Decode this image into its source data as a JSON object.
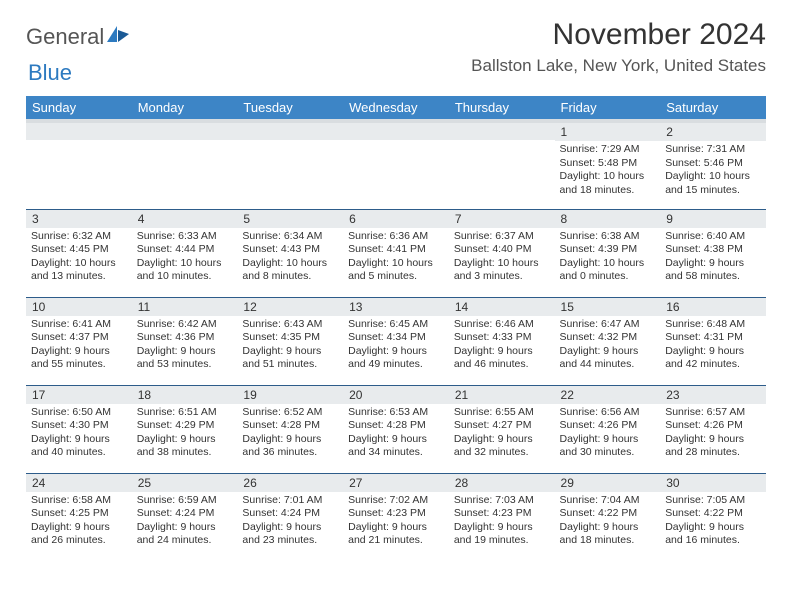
{
  "logo": {
    "text_main": "General",
    "text_sub": "Blue"
  },
  "title": "November 2024",
  "location": "Ballston Lake, New York, United States",
  "colors": {
    "header_bg": "#3d85c6",
    "header_fg": "#ffffff",
    "daynum_bg": "#e8ebed",
    "row_border": "#2d5c8a",
    "body_text": "#333333",
    "logo_blue": "#2d7ac0"
  },
  "columns": [
    "Sunday",
    "Monday",
    "Tuesday",
    "Wednesday",
    "Thursday",
    "Friday",
    "Saturday"
  ],
  "weeks": [
    [
      {
        "d": "",
        "sr": "",
        "ss": "",
        "dl1": "",
        "dl2": ""
      },
      {
        "d": "",
        "sr": "",
        "ss": "",
        "dl1": "",
        "dl2": ""
      },
      {
        "d": "",
        "sr": "",
        "ss": "",
        "dl1": "",
        "dl2": ""
      },
      {
        "d": "",
        "sr": "",
        "ss": "",
        "dl1": "",
        "dl2": ""
      },
      {
        "d": "",
        "sr": "",
        "ss": "",
        "dl1": "",
        "dl2": ""
      },
      {
        "d": "1",
        "sr": "Sunrise: 7:29 AM",
        "ss": "Sunset: 5:48 PM",
        "dl1": "Daylight: 10 hours",
        "dl2": "and 18 minutes."
      },
      {
        "d": "2",
        "sr": "Sunrise: 7:31 AM",
        "ss": "Sunset: 5:46 PM",
        "dl1": "Daylight: 10 hours",
        "dl2": "and 15 minutes."
      }
    ],
    [
      {
        "d": "3",
        "sr": "Sunrise: 6:32 AM",
        "ss": "Sunset: 4:45 PM",
        "dl1": "Daylight: 10 hours",
        "dl2": "and 13 minutes."
      },
      {
        "d": "4",
        "sr": "Sunrise: 6:33 AM",
        "ss": "Sunset: 4:44 PM",
        "dl1": "Daylight: 10 hours",
        "dl2": "and 10 minutes."
      },
      {
        "d": "5",
        "sr": "Sunrise: 6:34 AM",
        "ss": "Sunset: 4:43 PM",
        "dl1": "Daylight: 10 hours",
        "dl2": "and 8 minutes."
      },
      {
        "d": "6",
        "sr": "Sunrise: 6:36 AM",
        "ss": "Sunset: 4:41 PM",
        "dl1": "Daylight: 10 hours",
        "dl2": "and 5 minutes."
      },
      {
        "d": "7",
        "sr": "Sunrise: 6:37 AM",
        "ss": "Sunset: 4:40 PM",
        "dl1": "Daylight: 10 hours",
        "dl2": "and 3 minutes."
      },
      {
        "d": "8",
        "sr": "Sunrise: 6:38 AM",
        "ss": "Sunset: 4:39 PM",
        "dl1": "Daylight: 10 hours",
        "dl2": "and 0 minutes."
      },
      {
        "d": "9",
        "sr": "Sunrise: 6:40 AM",
        "ss": "Sunset: 4:38 PM",
        "dl1": "Daylight: 9 hours",
        "dl2": "and 58 minutes."
      }
    ],
    [
      {
        "d": "10",
        "sr": "Sunrise: 6:41 AM",
        "ss": "Sunset: 4:37 PM",
        "dl1": "Daylight: 9 hours",
        "dl2": "and 55 minutes."
      },
      {
        "d": "11",
        "sr": "Sunrise: 6:42 AM",
        "ss": "Sunset: 4:36 PM",
        "dl1": "Daylight: 9 hours",
        "dl2": "and 53 minutes."
      },
      {
        "d": "12",
        "sr": "Sunrise: 6:43 AM",
        "ss": "Sunset: 4:35 PM",
        "dl1": "Daylight: 9 hours",
        "dl2": "and 51 minutes."
      },
      {
        "d": "13",
        "sr": "Sunrise: 6:45 AM",
        "ss": "Sunset: 4:34 PM",
        "dl1": "Daylight: 9 hours",
        "dl2": "and 49 minutes."
      },
      {
        "d": "14",
        "sr": "Sunrise: 6:46 AM",
        "ss": "Sunset: 4:33 PM",
        "dl1": "Daylight: 9 hours",
        "dl2": "and 46 minutes."
      },
      {
        "d": "15",
        "sr": "Sunrise: 6:47 AM",
        "ss": "Sunset: 4:32 PM",
        "dl1": "Daylight: 9 hours",
        "dl2": "and 44 minutes."
      },
      {
        "d": "16",
        "sr": "Sunrise: 6:48 AM",
        "ss": "Sunset: 4:31 PM",
        "dl1": "Daylight: 9 hours",
        "dl2": "and 42 minutes."
      }
    ],
    [
      {
        "d": "17",
        "sr": "Sunrise: 6:50 AM",
        "ss": "Sunset: 4:30 PM",
        "dl1": "Daylight: 9 hours",
        "dl2": "and 40 minutes."
      },
      {
        "d": "18",
        "sr": "Sunrise: 6:51 AM",
        "ss": "Sunset: 4:29 PM",
        "dl1": "Daylight: 9 hours",
        "dl2": "and 38 minutes."
      },
      {
        "d": "19",
        "sr": "Sunrise: 6:52 AM",
        "ss": "Sunset: 4:28 PM",
        "dl1": "Daylight: 9 hours",
        "dl2": "and 36 minutes."
      },
      {
        "d": "20",
        "sr": "Sunrise: 6:53 AM",
        "ss": "Sunset: 4:28 PM",
        "dl1": "Daylight: 9 hours",
        "dl2": "and 34 minutes."
      },
      {
        "d": "21",
        "sr": "Sunrise: 6:55 AM",
        "ss": "Sunset: 4:27 PM",
        "dl1": "Daylight: 9 hours",
        "dl2": "and 32 minutes."
      },
      {
        "d": "22",
        "sr": "Sunrise: 6:56 AM",
        "ss": "Sunset: 4:26 PM",
        "dl1": "Daylight: 9 hours",
        "dl2": "and 30 minutes."
      },
      {
        "d": "23",
        "sr": "Sunrise: 6:57 AM",
        "ss": "Sunset: 4:26 PM",
        "dl1": "Daylight: 9 hours",
        "dl2": "and 28 minutes."
      }
    ],
    [
      {
        "d": "24",
        "sr": "Sunrise: 6:58 AM",
        "ss": "Sunset: 4:25 PM",
        "dl1": "Daylight: 9 hours",
        "dl2": "and 26 minutes."
      },
      {
        "d": "25",
        "sr": "Sunrise: 6:59 AM",
        "ss": "Sunset: 4:24 PM",
        "dl1": "Daylight: 9 hours",
        "dl2": "and 24 minutes."
      },
      {
        "d": "26",
        "sr": "Sunrise: 7:01 AM",
        "ss": "Sunset: 4:24 PM",
        "dl1": "Daylight: 9 hours",
        "dl2": "and 23 minutes."
      },
      {
        "d": "27",
        "sr": "Sunrise: 7:02 AM",
        "ss": "Sunset: 4:23 PM",
        "dl1": "Daylight: 9 hours",
        "dl2": "and 21 minutes."
      },
      {
        "d": "28",
        "sr": "Sunrise: 7:03 AM",
        "ss": "Sunset: 4:23 PM",
        "dl1": "Daylight: 9 hours",
        "dl2": "and 19 minutes."
      },
      {
        "d": "29",
        "sr": "Sunrise: 7:04 AM",
        "ss": "Sunset: 4:22 PM",
        "dl1": "Daylight: 9 hours",
        "dl2": "and 18 minutes."
      },
      {
        "d": "30",
        "sr": "Sunrise: 7:05 AM",
        "ss": "Sunset: 4:22 PM",
        "dl1": "Daylight: 9 hours",
        "dl2": "and 16 minutes."
      }
    ]
  ]
}
